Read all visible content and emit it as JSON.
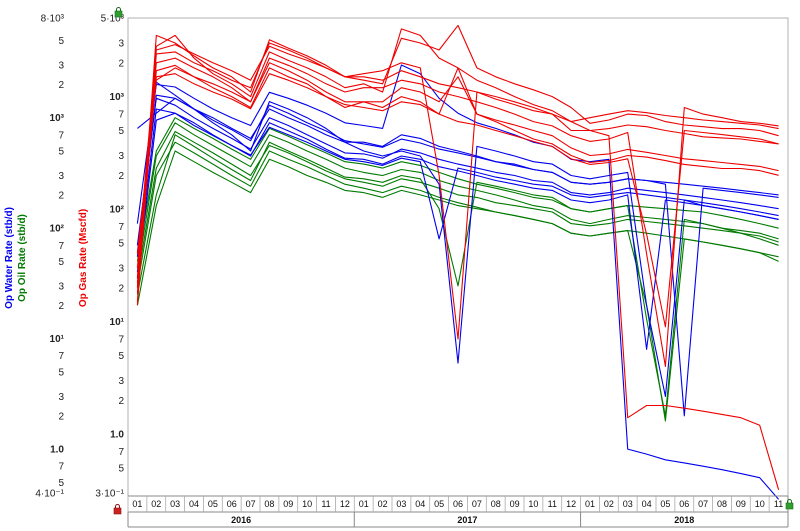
{
  "chart_data": {
    "type": "line",
    "log_scale": true,
    "grid": false,
    "legend": "none",
    "colors": {
      "gas": "#ee0000",
      "water": "#0000ee",
      "oil": "#007a00",
      "lock": "#cc2222",
      "widget": "#2e9e2e"
    },
    "axes": [
      {
        "id": "water",
        "title": "Op Water Rate (stb/d)",
        "color": "#0000ee",
        "ylim": [
          0.4,
          8000
        ],
        "tick_labels": [
          "8·10³",
          "5",
          "3",
          "2",
          "10³",
          "7",
          "5",
          "3",
          "2",
          "10²",
          "7",
          "5",
          "3",
          "2",
          "10¹",
          "7",
          "5",
          "3",
          "2",
          "1.0",
          "7",
          "5",
          "4·10⁻¹"
        ]
      },
      {
        "id": "oil",
        "title": "Op Oil Rate (stb/d)",
        "color": "#007a00",
        "ylim": [
          0.4,
          8000
        ]
      },
      {
        "id": "gas",
        "title": "Op Gas Rate (Mscfd)",
        "color": "#ee0000",
        "ylim": [
          0.3,
          5000
        ],
        "tick_labels": [
          "5·10³",
          "3",
          "2",
          "10³",
          "7",
          "5",
          "3",
          "2",
          "10²",
          "7",
          "5",
          "3",
          "2",
          "10¹",
          "7",
          "5",
          "3",
          "2",
          "1.0",
          "7",
          "5",
          "3·10⁻¹"
        ]
      }
    ],
    "x_axis": {
      "start": "2016-01",
      "months": [
        "01",
        "02",
        "03",
        "04",
        "05",
        "06",
        "07",
        "08",
        "09",
        "10",
        "11",
        "12",
        "01",
        "02",
        "03",
        "04",
        "05",
        "06",
        "07",
        "08",
        "09",
        "10",
        "11",
        "12",
        "01",
        "02",
        "03",
        "04",
        "05",
        "06",
        "07",
        "08",
        "09",
        "10",
        "11"
      ],
      "years": [
        "2016",
        "2017",
        "2018"
      ]
    },
    "series": [
      {
        "group": "gas",
        "values": [
          15,
          3500,
          3000,
          2300,
          1800,
          1500,
          1100,
          3200,
          2700,
          2300,
          1900,
          1500,
          1400,
          1300,
          3300,
          3000,
          2600,
          4300,
          1800,
          1500,
          1300,
          1150,
          1000,
          800,
          580,
          620,
          700,
          680,
          600,
          560,
          540,
          520,
          520,
          500,
          450
        ]
      },
      {
        "group": "gas",
        "values": [
          20,
          2800,
          3500,
          2200,
          1600,
          1300,
          1000,
          2500,
          2100,
          1800,
          1500,
          1200,
          1300,
          1100,
          4000,
          3500,
          2200,
          1800,
          1400,
          1200,
          1000,
          850,
          750,
          600,
          500,
          520,
          560,
          540,
          500,
          470,
          440,
          430,
          420,
          400,
          380
        ]
      },
      {
        "group": "gas",
        "values": [
          40,
          1400,
          1800,
          1500,
          1300,
          1100,
          900,
          2000,
          1700,
          1400,
          1100,
          900,
          900,
          800,
          1000,
          900,
          700,
          1800,
          700,
          600,
          500,
          420,
          380,
          300,
          260,
          270,
          300,
          290,
          270,
          250,
          240,
          230,
          230,
          220,
          200
        ]
      },
      {
        "group": "gas",
        "values": [
          14,
          2400,
          2500,
          2000,
          1700,
          1400,
          1200,
          3000,
          2600,
          2200,
          1800,
          1500,
          1600,
          1700,
          2000,
          1800,
          200,
          7,
          1100,
          1000,
          900,
          800,
          700,
          500,
          500,
          450,
          1.4,
          1.8,
          1.8,
          1.7,
          1.6,
          1.5,
          1.4,
          1.2,
          0.32
        ]
      },
      {
        "group": "gas",
        "values": [
          25,
          2000,
          2200,
          1800,
          1500,
          1200,
          900,
          2200,
          1900,
          1600,
          1300,
          1100,
          1200,
          1200,
          1400,
          1300,
          1100,
          1000,
          900,
          800,
          700,
          600,
          550,
          450,
          400,
          420,
          480,
          40,
          4,
          800,
          700,
          650,
          600,
          580,
          550
        ]
      },
      {
        "group": "gas",
        "values": [
          18,
          1700,
          1900,
          1500,
          1200,
          1000,
          800,
          1800,
          1500,
          1300,
          1000,
          800,
          900,
          900,
          1200,
          1100,
          900,
          1500,
          700,
          620,
          560,
          500,
          450,
          350,
          300,
          310,
          340,
          320,
          300,
          280,
          270,
          260,
          250,
          240,
          220
        ]
      },
      {
        "group": "gas",
        "values": [
          30,
          2600,
          2900,
          2400,
          2000,
          1700,
          1400,
          2800,
          2400,
          2100,
          1800,
          1500,
          1500,
          1400,
          1700,
          1500,
          1300,
          1200,
          1100,
          950,
          850,
          750,
          700,
          600,
          650,
          700,
          750,
          720,
          680,
          650,
          620,
          600,
          580,
          560,
          520
        ]
      },
      {
        "group": "gas",
        "values": [
          22,
          1500,
          1600,
          1300,
          1100,
          950,
          780,
          1600,
          1400,
          1200,
          1000,
          850,
          800,
          750,
          900,
          850,
          700,
          600,
          560,
          500,
          450,
          400,
          360,
          280,
          250,
          260,
          280,
          60,
          9,
          500,
          480,
          460,
          440,
          420,
          380
        ]
      },
      {
        "group": "water",
        "values": [
          60,
          2100,
          1600,
          1200,
          900,
          700,
          500,
          1400,
          1200,
          1000,
          800,
          600,
          500,
          450,
          500,
          450,
          250,
          6,
          550,
          500,
          450,
          400,
          380,
          300,
          280,
          300,
          320,
          20,
          3,
          180,
          160,
          150,
          140,
          130,
          120
        ]
      },
      {
        "group": "water",
        "values": [
          110,
          2000,
          1900,
          1500,
          1200,
          1000,
          850,
          1700,
          1500,
          1300,
          1100,
          900,
          850,
          800,
          3000,
          2500,
          1500,
          1100,
          900,
          800,
          700,
          600,
          550,
          420,
          400,
          420,
          1.0,
          0.9,
          0.8,
          0.75,
          0.7,
          0.65,
          0.6,
          0.55,
          0.35
        ]
      },
      {
        "group": "water",
        "values": [
          800,
          1100,
          1500,
          1200,
          1000,
          800,
          650,
          1200,
          1000,
          850,
          700,
          600,
          600,
          550,
          700,
          650,
          550,
          500,
          450,
          400,
          380,
          340,
          320,
          260,
          250,
          260,
          280,
          270,
          250,
          2,
          230,
          220,
          210,
          200,
          190
        ]
      },
      {
        "group": "water",
        "values": [
          70,
          1500,
          1300,
          1000,
          800,
          650,
          520,
          1000,
          850,
          700,
          580,
          480,
          470,
          430,
          520,
          480,
          420,
          380,
          350,
          320,
          300,
          270,
          260,
          210,
          200,
          210,
          230,
          220,
          210,
          200,
          190,
          180,
          170,
          160,
          150
        ]
      },
      {
        "group": "water",
        "values": [
          40,
          1200,
          1100,
          900,
          700,
          560,
          450,
          900,
          760,
          640,
          520,
          430,
          420,
          380,
          450,
          420,
          360,
          330,
          300,
          270,
          250,
          230,
          220,
          180,
          170,
          180,
          200,
          8,
          180,
          170,
          160,
          150,
          140,
          130,
          120
        ]
      },
      {
        "group": "water",
        "values": [
          55,
          1600,
          1500,
          1200,
          950,
          780,
          620,
          1300,
          1100,
          900,
          760,
          620,
          580,
          540,
          640,
          590,
          520,
          480,
          440,
          400,
          370,
          340,
          320,
          260,
          250,
          260,
          280,
          270,
          260,
          250,
          240,
          230,
          220,
          210,
          200
        ]
      },
      {
        "group": "water",
        "values": [
          35,
          950,
          1100,
          850,
          690,
          560,
          460,
          820,
          700,
          600,
          500,
          420,
          400,
          370,
          430,
          400,
          80,
          350,
          320,
          290,
          270,
          250,
          240,
          200,
          190,
          200,
          210,
          200,
          190,
          180,
          170,
          160,
          150,
          140,
          130
        ]
      },
      {
        "group": "oil",
        "values": [
          25,
          200,
          700,
          550,
          430,
          340,
          270,
          600,
          500,
          420,
          350,
          290,
          280,
          260,
          300,
          280,
          150,
          30,
          260,
          240,
          220,
          200,
          190,
          150,
          140,
          150,
          160,
          15,
          2,
          120,
          110,
          100,
          90,
          80,
          70
        ]
      },
      {
        "group": "oil",
        "values": [
          40,
          450,
          900,
          700,
          560,
          450,
          360,
          700,
          600,
          500,
          420,
          350,
          320,
          300,
          340,
          320,
          270,
          240,
          220,
          200,
          180,
          160,
          150,
          120,
          110,
          120,
          130,
          125,
          120,
          115,
          110,
          100,
          95,
          90,
          80
        ]
      },
      {
        "group": "oil",
        "values": [
          30,
          300,
          600,
          480,
          380,
          300,
          240,
          500,
          420,
          360,
          300,
          250,
          230,
          210,
          240,
          220,
          190,
          170,
          155,
          140,
          130,
          120,
          110,
          90,
          85,
          90,
          95,
          20,
          1.8,
          80,
          75,
          70,
          65,
          60,
          55
        ]
      },
      {
        "group": "oil",
        "values": [
          20,
          160,
          500,
          400,
          320,
          260,
          210,
          420,
          360,
          300,
          260,
          220,
          210,
          190,
          220,
          200,
          180,
          160,
          150,
          140,
          130,
          120,
          110,
          90,
          85,
          90,
          95,
          90,
          85,
          80,
          75,
          70,
          65,
          60,
          50
        ]
      },
      {
        "group": "oil",
        "values": [
          50,
          500,
          1000,
          800,
          650,
          520,
          420,
          800,
          680,
          570,
          480,
          400,
          380,
          350,
          400,
          370,
          320,
          280,
          250,
          230,
          210,
          190,
          180,
          150,
          140,
          150,
          160,
          155,
          150,
          145,
          140,
          130,
          120,
          110,
          100
        ]
      },
      {
        "group": "oil",
        "values": [
          35,
          350,
          750,
          600,
          480,
          380,
          300,
          560,
          480,
          400,
          330,
          280,
          260,
          240,
          280,
          260,
          230,
          200,
          190,
          170,
          160,
          150,
          140,
          110,
          105,
          110,
          120,
          115,
          110,
          105,
          100,
          95,
          90,
          85,
          75
        ]
      }
    ]
  }
}
